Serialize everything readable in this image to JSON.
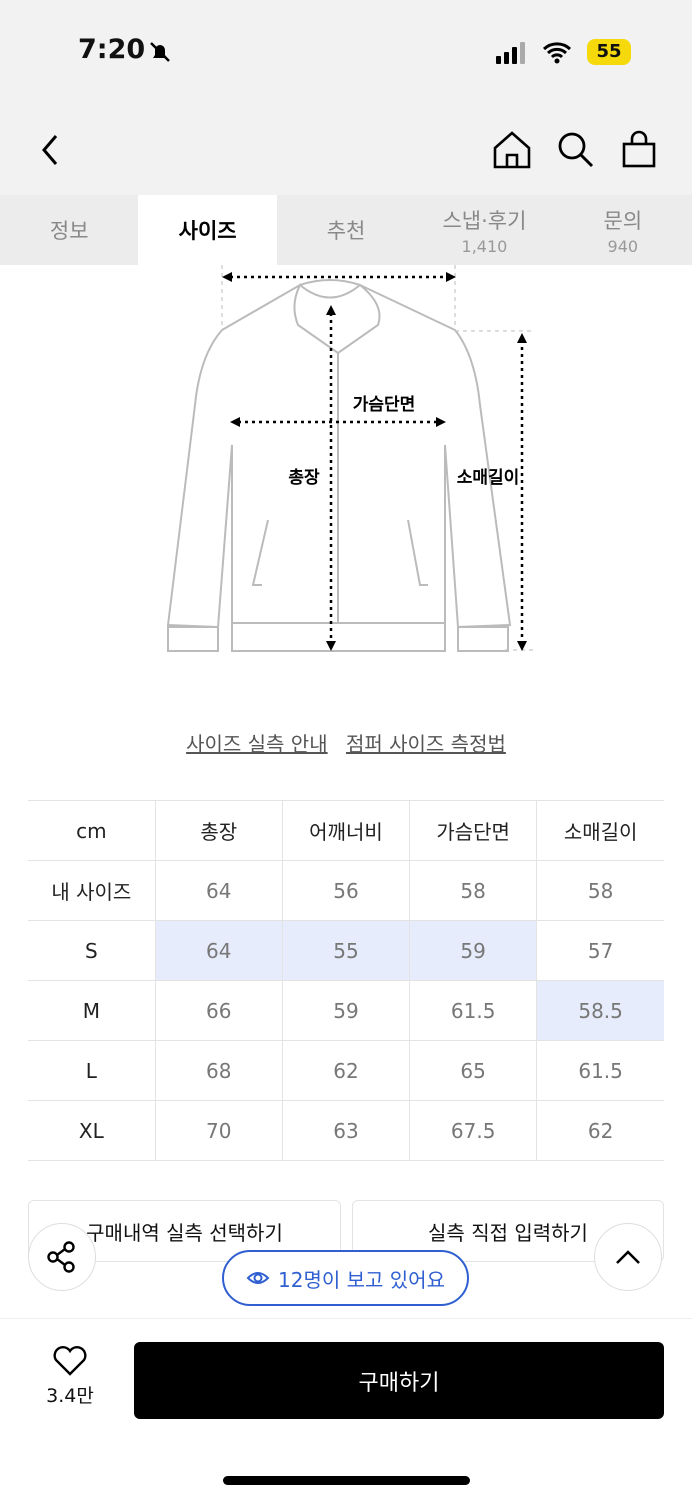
{
  "status": {
    "time": "7:20",
    "battery": "55"
  },
  "tabs": [
    {
      "label": "정보"
    },
    {
      "label": "사이즈",
      "active": true
    },
    {
      "label": "추천"
    },
    {
      "label": "스냅·후기",
      "count": "1,410"
    },
    {
      "label": "문의",
      "count": "940"
    }
  ],
  "diagram": {
    "chest": "가슴단면",
    "length": "총장",
    "sleeve": "소매길이"
  },
  "links": {
    "guide": "사이즈 실측 안내",
    "measure": "점퍼 사이즈 측정법"
  },
  "table": {
    "headers": [
      "cm",
      "총장",
      "어깨너비",
      "가슴단면",
      "소매길이"
    ],
    "rows": [
      [
        "내 사이즈",
        "64",
        "56",
        "58",
        "58"
      ],
      [
        "S",
        "64",
        "55",
        "59",
        "57"
      ],
      [
        "M",
        "66",
        "59",
        "61.5",
        "58.5"
      ],
      [
        "L",
        "68",
        "62",
        "65",
        "61.5"
      ],
      [
        "XL",
        "70",
        "63",
        "67.5",
        "62"
      ]
    ]
  },
  "buttons": {
    "history": "구매내역 실측 선택하기",
    "direct": "실측 직접 입력하기"
  },
  "viewers": "12명이 보고 있어요",
  "likes": "3.4만",
  "buy": "구매하기",
  "colors": {
    "accent": "#2f5fd0",
    "highlight": "#e6ecfb"
  }
}
